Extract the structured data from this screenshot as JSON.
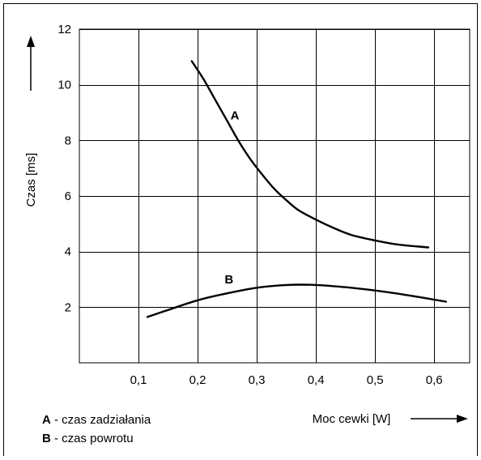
{
  "chart_data": {
    "type": "line",
    "title": "",
    "xlabel": "Moc cewki [W]",
    "ylabel": "Czas [ms]",
    "xlim": [
      0,
      0.66
    ],
    "ylim": [
      0,
      12
    ],
    "grid": true,
    "x_ticks": [
      0.1,
      0.2,
      0.3,
      0.4,
      0.5,
      0.6
    ],
    "x_tick_labels": [
      "0,1",
      "0,2",
      "0,3",
      "0,4",
      "0,5",
      "0,6"
    ],
    "y_ticks": [
      2,
      4,
      6,
      8,
      10,
      12
    ],
    "y_tick_labels": [
      "2",
      "4",
      "6",
      "8",
      "10",
      "12"
    ],
    "series": [
      {
        "name": "A",
        "x": [
          0.19,
          0.21,
          0.23,
          0.25,
          0.27,
          0.29,
          0.31,
          0.33,
          0.35,
          0.37,
          0.4,
          0.43,
          0.46,
          0.5,
          0.54,
          0.59
        ],
        "y": [
          10.85,
          10.2,
          9.45,
          8.7,
          7.95,
          7.3,
          6.75,
          6.25,
          5.85,
          5.5,
          5.15,
          4.85,
          4.6,
          4.4,
          4.25,
          4.15
        ]
      },
      {
        "name": "B",
        "x": [
          0.115,
          0.15,
          0.2,
          0.25,
          0.3,
          0.35,
          0.4,
          0.45,
          0.5,
          0.55,
          0.62
        ],
        "y": [
          1.65,
          1.9,
          2.25,
          2.5,
          2.7,
          2.8,
          2.8,
          2.72,
          2.6,
          2.45,
          2.2
        ]
      }
    ],
    "legend": [
      {
        "key": "A",
        "text": " - czas zadziałania"
      },
      {
        "key": "B",
        "text": " - czas powrotu"
      }
    ],
    "legend_position": "bottom-left",
    "colors": {
      "line": "#000000",
      "grid": "#000000",
      "background": "#ffffff"
    }
  }
}
